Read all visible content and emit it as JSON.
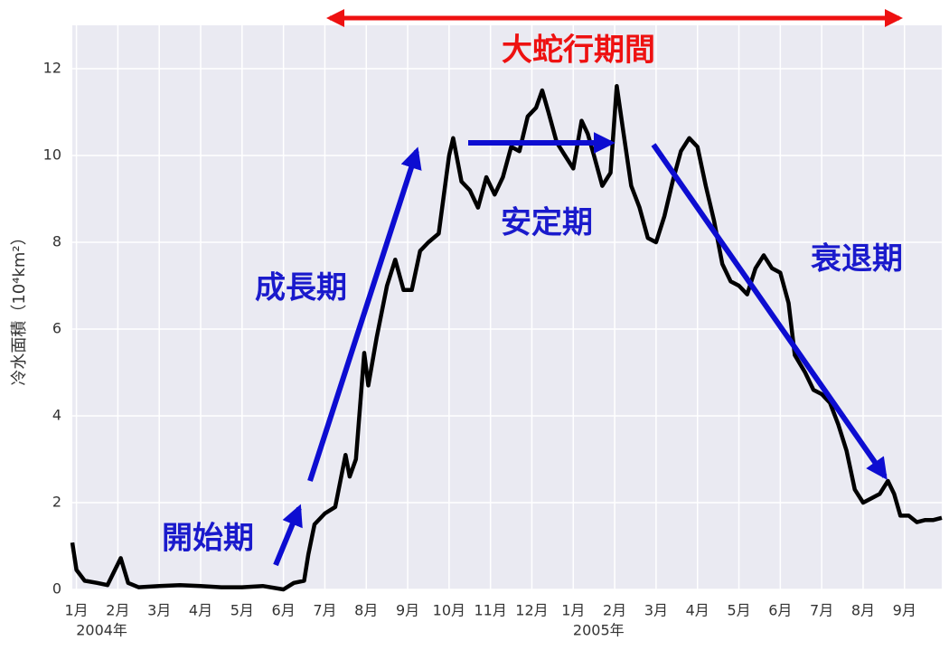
{
  "chart_data": {
    "type": "line",
    "ylabel": "冷水面積（10⁴km²）",
    "annotations": [
      {
        "text": "大蛇行期間",
        "color": "#ee1111"
      },
      {
        "text": "開始期",
        "color": "#1a1acc"
      },
      {
        "text": "成長期",
        "color": "#1a1acc"
      },
      {
        "text": "安定期",
        "color": "#1a1acc"
      },
      {
        "text": "衰退期",
        "color": "#1a1acc"
      }
    ],
    "color": "#000000",
    "grid": true,
    "xlim": [
      -0.1,
      20.9
    ],
    "ylim": [
      0,
      13
    ],
    "yticks": [
      0,
      2,
      4,
      6,
      8,
      10,
      12
    ],
    "xticks": [
      {
        "value": 0,
        "label": "1月"
      },
      {
        "value": 1,
        "label": "2月"
      },
      {
        "value": 2,
        "label": "3月"
      },
      {
        "value": 3,
        "label": "4月"
      },
      {
        "value": 4,
        "label": "5月"
      },
      {
        "value": 5,
        "label": "6月"
      },
      {
        "value": 6,
        "label": "7月"
      },
      {
        "value": 7,
        "label": "8月"
      },
      {
        "value": 8,
        "label": "9月"
      },
      {
        "value": 9,
        "label": "10月"
      },
      {
        "value": 10,
        "label": "11月"
      },
      {
        "value": 11,
        "label": "12月"
      },
      {
        "value": 12,
        "label": "1月"
      },
      {
        "value": 13,
        "label": "2月"
      },
      {
        "value": 14,
        "label": "3月"
      },
      {
        "value": 15,
        "label": "4月"
      },
      {
        "value": 16,
        "label": "5月"
      },
      {
        "value": 17,
        "label": "6月"
      },
      {
        "value": 18,
        "label": "7月"
      },
      {
        "value": 19,
        "label": "8月"
      },
      {
        "value": 20,
        "label": "9月"
      }
    ],
    "year_labels": [
      {
        "value": 0,
        "label": "2004年"
      },
      {
        "value": 12,
        "label": "2005年"
      }
    ],
    "x": [
      -0.1,
      0,
      0.2,
      0.5,
      0.75,
      1.07,
      1.25,
      1.5,
      2,
      2.5,
      3,
      3.5,
      4,
      4.5,
      5,
      5.25,
      5.5,
      5.6,
      5.75,
      6,
      6.25,
      6.5,
      6.6,
      6.75,
      6.95,
      7.05,
      7.25,
      7.5,
      7.7,
      7.9,
      8.1,
      8.3,
      8.5,
      8.75,
      9,
      9.1,
      9.3,
      9.5,
      9.7,
      9.9,
      10.1,
      10.3,
      10.5,
      10.7,
      10.9,
      11.1,
      11.25,
      11.4,
      11.6,
      11.8,
      12,
      12.2,
      12.35,
      12.5,
      12.7,
      12.9,
      13.05,
      13.2,
      13.4,
      13.6,
      13.8,
      14,
      14.2,
      14.4,
      14.6,
      14.8,
      15,
      15.2,
      15.4,
      15.6,
      15.8,
      16,
      16.2,
      16.4,
      16.6,
      16.8,
      17,
      17.2,
      17.35,
      17.6,
      17.8,
      18,
      18.2,
      18.4,
      18.6,
      18.8,
      19,
      19.2,
      19.4,
      19.6,
      19.75,
      19.9,
      20.1,
      20.3,
      20.5,
      20.7,
      20.9
    ],
    "values": [
      1.08,
      0.45,
      0.2,
      0.15,
      0.1,
      0.72,
      0.15,
      0.05,
      0.08,
      0.1,
      0.08,
      0.05,
      0.05,
      0.08,
      0.0,
      0.15,
      0.2,
      0.8,
      1.5,
      1.75,
      1.9,
      3.1,
      2.6,
      3.0,
      5.45,
      4.7,
      5.8,
      7.0,
      7.6,
      6.9,
      6.9,
      7.8,
      8.0,
      8.2,
      10.0,
      10.4,
      9.4,
      9.2,
      8.8,
      9.5,
      9.1,
      9.5,
      10.2,
      10.1,
      10.9,
      11.1,
      11.5,
      11.0,
      10.3,
      10.0,
      9.7,
      10.8,
      10.5,
      10.0,
      9.3,
      9.6,
      11.6,
      10.6,
      9.3,
      8.8,
      8.1,
      8.0,
      8.6,
      9.4,
      10.1,
      10.4,
      10.2,
      9.3,
      8.5,
      7.5,
      7.1,
      7.0,
      6.8,
      7.4,
      7.7,
      7.4,
      7.3,
      6.6,
      5.4,
      5.0,
      4.6,
      4.5,
      4.3,
      3.8,
      3.2,
      2.3,
      2.0,
      2.1,
      2.2,
      2.5,
      2.2,
      1.7,
      1.7,
      1.55,
      1.6,
      1.6,
      1.65
    ]
  }
}
